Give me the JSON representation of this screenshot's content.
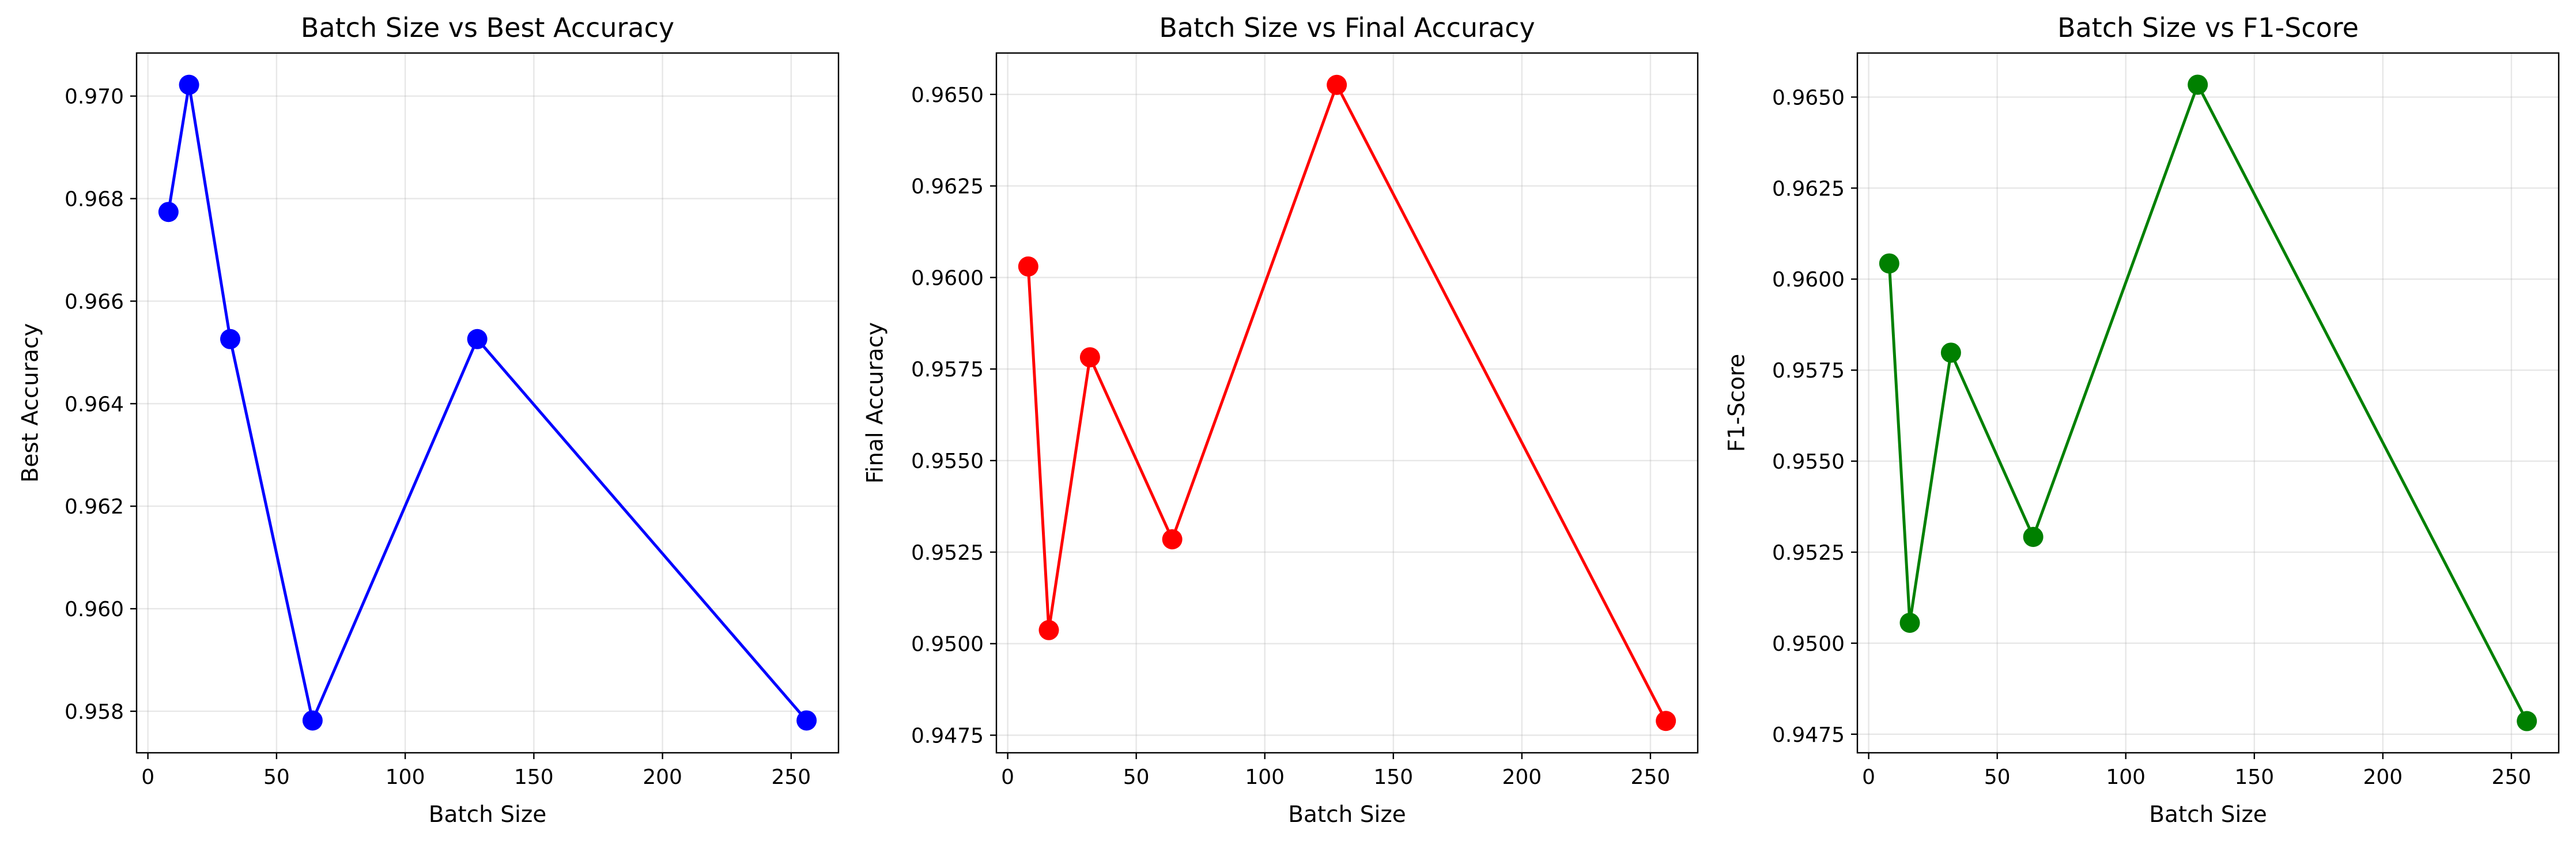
{
  "chart_data": [
    {
      "type": "line",
      "title": "Batch Size vs Best Accuracy",
      "xlabel": "Batch Size",
      "ylabel": "Best Accuracy",
      "x": [
        8,
        16,
        32,
        64,
        128,
        256
      ],
      "series": [
        {
          "values": [
            0.96774,
            0.97022,
            0.96526,
            0.95782,
            0.96526,
            0.95782
          ],
          "color": "#0000ff"
        }
      ],
      "xlim": [
        -4.4,
        268.4
      ],
      "ylim": [
        0.95719,
        0.97084
      ],
      "xticks": [
        0,
        50,
        100,
        150,
        200,
        250
      ],
      "yticks": [
        0.958,
        0.96,
        0.962,
        0.964,
        0.966,
        0.968,
        0.97
      ],
      "xtick_labels": [
        "0",
        "50",
        "100",
        "150",
        "200",
        "250"
      ],
      "ytick_labels": [
        "0.958",
        "0.960",
        "0.962",
        "0.964",
        "0.966",
        "0.968",
        "0.970"
      ],
      "grid": true,
      "marker": "circle"
    },
    {
      "type": "line",
      "title": "Batch Size vs Final Accuracy",
      "xlabel": "Batch Size",
      "ylabel": "Final Accuracy",
      "x": [
        8,
        16,
        32,
        64,
        128,
        256
      ],
      "series": [
        {
          "values": [
            0.9603,
            0.95037,
            0.95782,
            0.95285,
            0.96526,
            0.94789
          ],
          "color": "#ff0000"
        }
      ],
      "xlim": [
        -4.4,
        268.4
      ],
      "ylim": [
        0.94702,
        0.96613
      ],
      "xticks": [
        0,
        50,
        100,
        150,
        200,
        250
      ],
      "yticks": [
        0.9475,
        0.95,
        0.9525,
        0.955,
        0.9575,
        0.96,
        0.9625,
        0.965
      ],
      "xtick_labels": [
        "0",
        "50",
        "100",
        "150",
        "200",
        "250"
      ],
      "ytick_labels": [
        "0.9475",
        "0.9500",
        "0.9525",
        "0.9550",
        "0.9575",
        "0.9600",
        "0.9625",
        "0.9650"
      ],
      "grid": true,
      "marker": "circle"
    },
    {
      "type": "line",
      "title": "Batch Size vs F1-Score",
      "xlabel": "Batch Size",
      "ylabel": "F1-Score",
      "x": [
        8,
        16,
        32,
        64,
        128,
        256
      ],
      "series": [
        {
          "values": [
            0.96043,
            0.95056,
            0.95798,
            0.95292,
            0.96534,
            0.94786
          ],
          "color": "#008000"
        }
      ],
      "xlim": [
        -4.4,
        268.4
      ],
      "ylim": [
        0.94699,
        0.96621
      ],
      "xticks": [
        0,
        50,
        100,
        150,
        200,
        250
      ],
      "yticks": [
        0.9475,
        0.95,
        0.9525,
        0.955,
        0.9575,
        0.96,
        0.9625,
        0.965
      ],
      "xtick_labels": [
        "0",
        "50",
        "100",
        "150",
        "200",
        "250"
      ],
      "ytick_labels": [
        "0.9475",
        "0.9500",
        "0.9525",
        "0.9550",
        "0.9575",
        "0.9600",
        "0.9625",
        "0.9650"
      ],
      "grid": true,
      "marker": "circle"
    }
  ]
}
